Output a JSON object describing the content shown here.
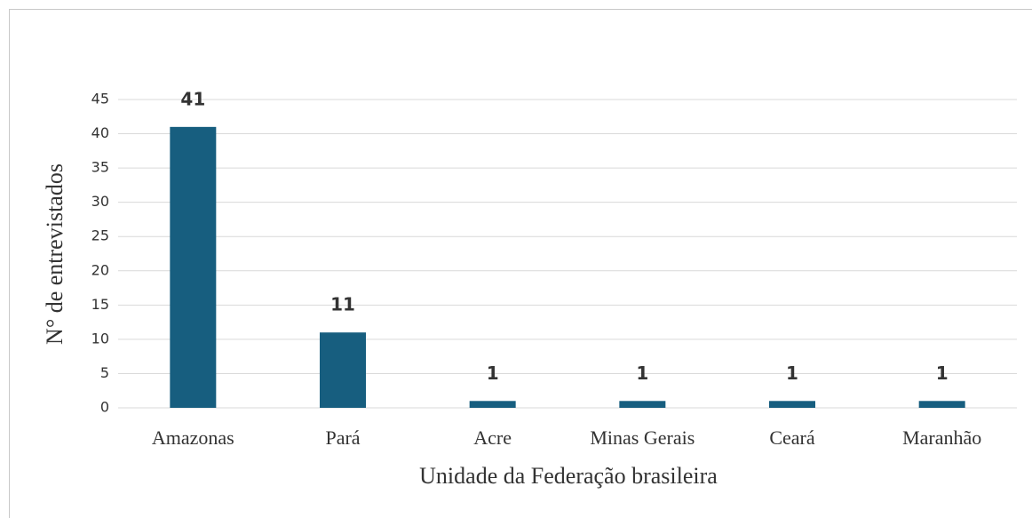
{
  "chart_data": {
    "type": "bar",
    "categories": [
      "Amazonas",
      "Pará",
      "Acre",
      "Minas Gerais",
      "Ceará",
      "Maranhão"
    ],
    "values": [
      41,
      11,
      1,
      1,
      1,
      1
    ],
    "color": "#175e7f",
    "x_label": "Unidade da Federação brasileira",
    "y_label": "N° de entrevistados",
    "ylim": [
      0,
      45
    ],
    "yticks": [
      0,
      5,
      10,
      15,
      20,
      25,
      30,
      35,
      40,
      45
    ],
    "grid": true
  }
}
